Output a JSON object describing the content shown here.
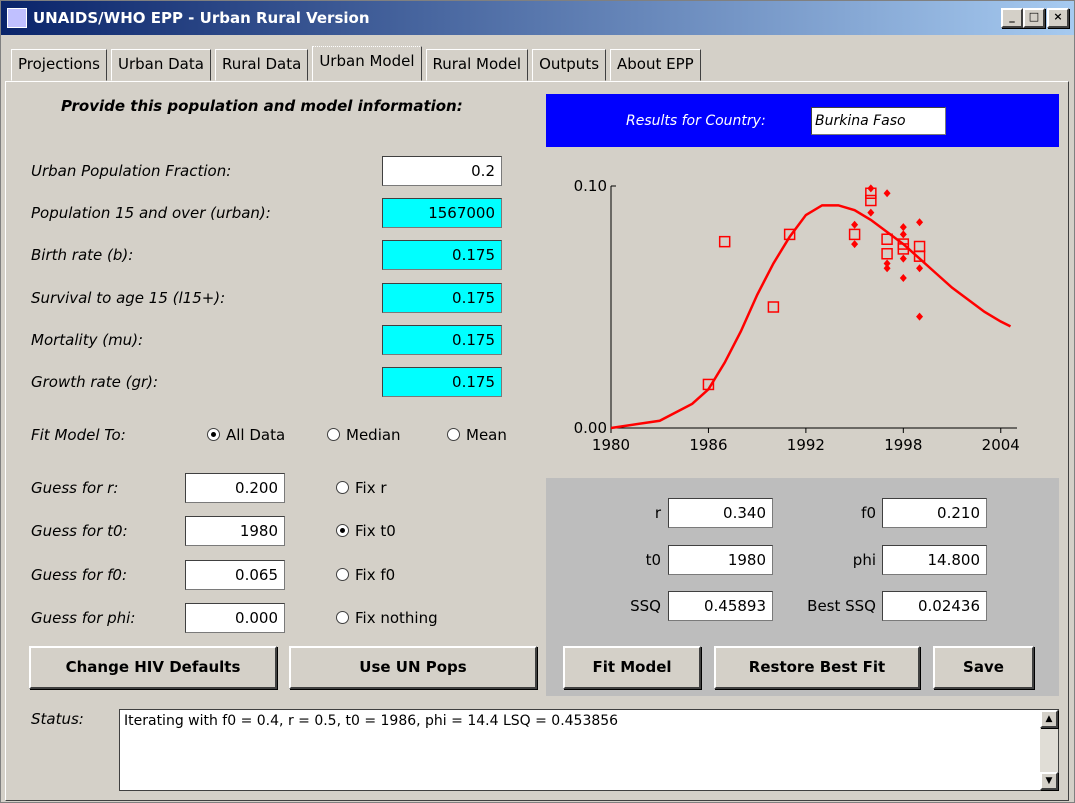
{
  "window": {
    "title": "UNAIDS/WHO EPP - Urban Rural Version"
  },
  "tabs": [
    "Projections",
    "Urban Data",
    "Rural Data",
    "Urban Model",
    "Rural Model",
    "Outputs",
    "About EPP"
  ],
  "selected_tab": 3,
  "inputs": {
    "heading": "Provide this population and model information:",
    "fields": [
      {
        "label": "Urban Population Fraction:",
        "value": "0.2",
        "color": "#ffffff"
      },
      {
        "label": "Population 15 and over (urban):",
        "value": "1567000",
        "color": "#00ffff"
      },
      {
        "label": "Birth rate (b):",
        "value": "0.175",
        "color": "#00ffff"
      },
      {
        "label": "Survival to age 15 (l15+):",
        "value": "0.175",
        "color": "#00ffff"
      },
      {
        "label": "Mortality (mu):",
        "value": "0.175",
        "color": "#00ffff"
      },
      {
        "label": "Growth rate (gr):",
        "value": "0.175",
        "color": "#00ffff"
      }
    ],
    "fit_label": "Fit Model To:",
    "fit_options": [
      {
        "label": "All Data",
        "checked": true
      },
      {
        "label": "Median",
        "checked": false
      },
      {
        "label": "Mean",
        "checked": false
      }
    ],
    "guesses": [
      {
        "label": "Guess for r:",
        "value": "0.200",
        "fix_label": "Fix r",
        "checked": false
      },
      {
        "label": "Guess for t0:",
        "value": "1980",
        "fix_label": "Fix t0",
        "checked": true
      },
      {
        "label": "Guess for f0:",
        "value": "0.065",
        "fix_label": "Fix f0",
        "checked": false
      },
      {
        "label": "Guess for phi:",
        "value": "0.000",
        "fix_label": "Fix nothing",
        "checked": false
      }
    ],
    "buttons": [
      "Change HIV Defaults",
      "Use UN Pops"
    ]
  },
  "results": {
    "label": "Results for Country:",
    "country": "Burkina Faso",
    "fields": [
      {
        "label": "r",
        "value": "0.340"
      },
      {
        "label": "f0",
        "value": "0.210"
      },
      {
        "label": "t0",
        "value": "1980"
      },
      {
        "label": "phi",
        "value": "14.800"
      },
      {
        "label": "SSQ",
        "value": "0.45893"
      },
      {
        "label": "Best SSQ",
        "value": "0.02436"
      }
    ],
    "buttons": [
      "Fit Model",
      "Restore Best Fit",
      "Save"
    ]
  },
  "status": {
    "label": "Status:",
    "text": "Iterating with f0 = 0.4, r = 0.5, t0 = 1986, phi = 14.4 LSQ = 0.453856"
  },
  "chart_data": {
    "type": "line",
    "xlim": [
      1980,
      2005
    ],
    "ylim": [
      0,
      0.1
    ],
    "xticks": [
      1980,
      1986,
      1992,
      1998,
      2004
    ],
    "yticks": [
      {
        "value": 0,
        "label": "0.00"
      },
      {
        "value": 0.1,
        "label": "0.10"
      }
    ],
    "series": [
      {
        "marker": "none",
        "color": "#ff0000",
        "x": [
          1980,
          1983,
          1985,
          1986,
          1987,
          1988,
          1989,
          1990,
          1991,
          1992,
          1993,
          1994,
          1995,
          1996,
          1997,
          1998,
          1999,
          2000,
          2001,
          2002,
          2003,
          2004,
          2004.6
        ],
        "values": [
          0,
          0.003,
          0.01,
          0.016,
          0.027,
          0.04,
          0.055,
          0.068,
          0.079,
          0.088,
          0.092,
          0.092,
          0.09,
          0.086,
          0.081,
          0.076,
          0.07,
          0.064,
          0.058,
          0.053,
          0.048,
          0.044,
          0.042
        ]
      },
      {
        "marker": "square",
        "color": "#ff0000",
        "x": [
          1986,
          1987,
          1990,
          1991,
          1995,
          1996,
          1996,
          1997,
          1997,
          1998,
          1998,
          1999,
          1999
        ],
        "values": [
          0.018,
          0.077,
          0.05,
          0.08,
          0.08,
          0.094,
          0.097,
          0.078,
          0.072,
          0.076,
          0.074,
          0.075,
          0.071
        ]
      },
      {
        "marker": "diamond",
        "color": "#ff0000",
        "x": [
          1995,
          1995,
          1996,
          1996,
          1997,
          1997,
          1997,
          1998,
          1998,
          1998,
          1998,
          1999,
          1999,
          1999
        ],
        "values": [
          0.084,
          0.076,
          0.099,
          0.089,
          0.097,
          0.068,
          0.066,
          0.083,
          0.08,
          0.07,
          0.062,
          0.085,
          0.066,
          0.046
        ]
      }
    ]
  }
}
